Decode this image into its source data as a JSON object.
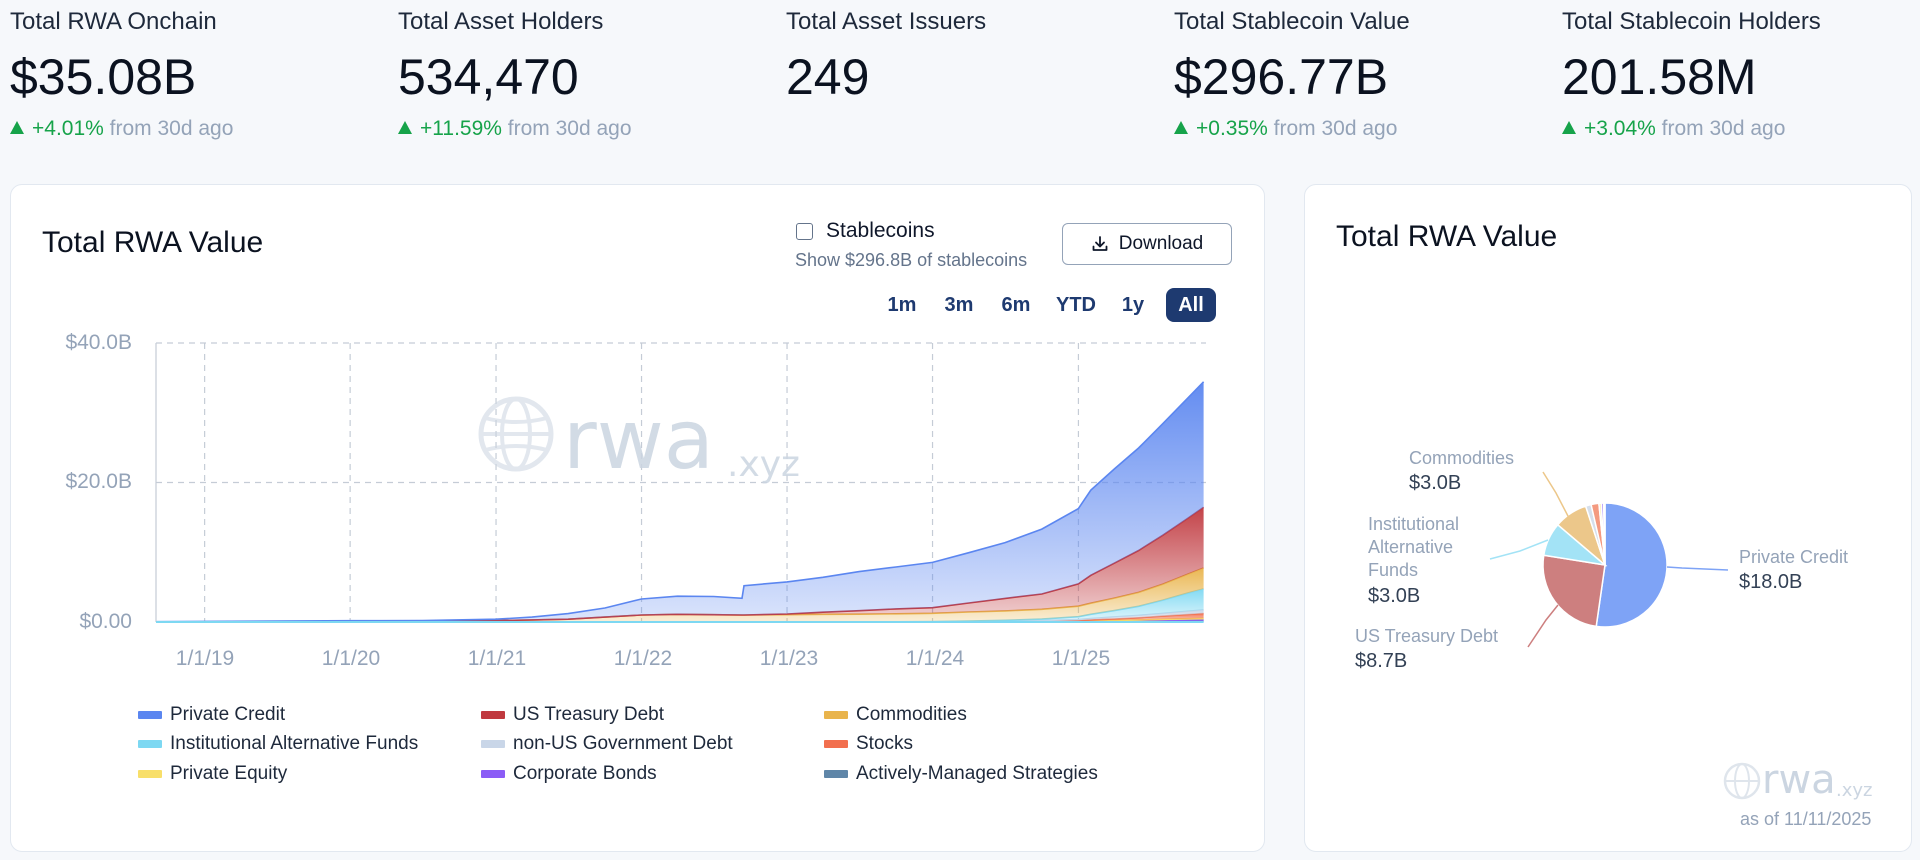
{
  "stats": [
    {
      "label": "Total RWA Onchain",
      "value": "$35.08B",
      "change": "+4.01%",
      "from": "from 30d ago"
    },
    {
      "label": "Total Asset Holders",
      "value": "534,470",
      "change": "+11.59%",
      "from": "from 30d ago"
    },
    {
      "label": "Total Asset Issuers",
      "value": "249",
      "change": "",
      "from": ""
    },
    {
      "label": "Total Stablecoin Value",
      "value": "$296.77B",
      "change": "+0.35%",
      "from": "from 30d ago"
    },
    {
      "label": "Total Stablecoin Holders",
      "value": "201.58M",
      "change": "+3.04%",
      "from": "from 30d ago"
    }
  ],
  "main": {
    "title": "Total RWA Value",
    "stablecoins_label": "Stablecoins",
    "stablecoins_sub": "Show $296.8B of stablecoins",
    "download_label": "Download",
    "ranges": [
      "1m",
      "3m",
      "6m",
      "YTD",
      "1y",
      "All"
    ],
    "active_range": "All"
  },
  "side": {
    "title": "Total RWA Value",
    "as_of": "as of 11/11/2025"
  },
  "watermark": {
    "main": "rwa",
    "suffix": ".xyz"
  },
  "colors": {
    "private_credit": "#5b86f0",
    "us_treasury": "#c0393f",
    "commodities": "#e9b44c",
    "inst_alt": "#7dd8f2",
    "non_us_gov": "#c9d6e8",
    "stocks": "#f26f4e",
    "private_equity": "#f8df6a",
    "corporate_bonds": "#8b5cf6",
    "actively_managed": "#5f86a8",
    "green": "#16a34a",
    "navy": "#1e3a70"
  },
  "chart_data": [
    {
      "type": "area",
      "title": "Total RWA Value",
      "stacked": true,
      "ylim": [
        0,
        40
      ],
      "y_unit": "B USD",
      "yticks": [
        "$0.00",
        "$20.0B",
        "$40.0B"
      ],
      "xticks": [
        "1/1/19",
        "1/1/20",
        "1/1/21",
        "1/1/22",
        "1/1/23",
        "1/1/24",
        "1/1/25"
      ],
      "x": [
        "2018-09-01",
        "2019-01-01",
        "2019-07-01",
        "2020-01-01",
        "2020-07-01",
        "2021-01-01",
        "2021-04-01",
        "2021-07-01",
        "2021-10-01",
        "2022-01-01",
        "2022-04-01",
        "2022-07-01",
        "2022-09-10",
        "2022-09-15",
        "2023-01-01",
        "2023-04-01",
        "2023-07-01",
        "2023-10-01",
        "2024-01-01",
        "2024-04-01",
        "2024-07-01",
        "2024-10-01",
        "2025-01-01",
        "2025-02-01",
        "2025-04-01",
        "2025-06-01",
        "2025-08-01",
        "2025-10-01",
        "2025-11-11"
      ],
      "legend_position": "bottom",
      "grid": true,
      "series": [
        {
          "name": "Actively-Managed Strategies",
          "color": "#5f86a8",
          "values": [
            0,
            0,
            0,
            0,
            0,
            0,
            0,
            0,
            0,
            0,
            0,
            0,
            0,
            0,
            0,
            0,
            0,
            0,
            0,
            0,
            0,
            0,
            0.01,
            0.02,
            0.03,
            0.05,
            0.07,
            0.1,
            0.12
          ]
        },
        {
          "name": "Corporate Bonds",
          "color": "#8b5cf6",
          "values": [
            0,
            0,
            0,
            0,
            0,
            0,
            0,
            0,
            0,
            0,
            0,
            0,
            0,
            0,
            0,
            0,
            0,
            0,
            0,
            0,
            0.01,
            0.02,
            0.04,
            0.06,
            0.1,
            0.13,
            0.17,
            0.2,
            0.22
          ]
        },
        {
          "name": "Private Equity",
          "color": "#f8df6a",
          "values": [
            0,
            0,
            0,
            0,
            0,
            0,
            0,
            0,
            0,
            0,
            0,
            0,
            0,
            0,
            0,
            0,
            0,
            0,
            0,
            0.01,
            0.02,
            0.04,
            0.06,
            0.08,
            0.1,
            0.12,
            0.15,
            0.18,
            0.2
          ]
        },
        {
          "name": "Stocks",
          "color": "#f26f4e",
          "values": [
            0,
            0,
            0,
            0,
            0,
            0,
            0,
            0,
            0,
            0,
            0,
            0,
            0,
            0,
            0,
            0,
            0,
            0,
            0.01,
            0.02,
            0.04,
            0.06,
            0.1,
            0.14,
            0.2,
            0.3,
            0.45,
            0.6,
            0.7
          ]
        },
        {
          "name": "non-US Government Debt",
          "color": "#c9d6e8",
          "values": [
            0,
            0,
            0,
            0,
            0,
            0,
            0,
            0,
            0,
            0,
            0,
            0,
            0,
            0,
            0,
            0.01,
            0.02,
            0.03,
            0.04,
            0.05,
            0.07,
            0.1,
            0.15,
            0.2,
            0.3,
            0.35,
            0.4,
            0.45,
            0.5
          ]
        },
        {
          "name": "Institutional Alternative Funds",
          "color": "#7dd8f2",
          "values": [
            0,
            0,
            0,
            0,
            0,
            0,
            0,
            0,
            0,
            0,
            0,
            0,
            0,
            0,
            0,
            0,
            0,
            0,
            0,
            0.05,
            0.1,
            0.2,
            0.4,
            0.6,
            0.9,
            1.3,
            1.9,
            2.6,
            3.0
          ]
        },
        {
          "name": "Commodities",
          "color": "#e9b44c",
          "values": [
            0.02,
            0.03,
            0.05,
            0.08,
            0.1,
            0.2,
            0.3,
            0.4,
            0.7,
            1.0,
            1.1,
            1.05,
            1.0,
            1.0,
            1.05,
            1.1,
            1.1,
            1.15,
            1.2,
            1.3,
            1.35,
            1.4,
            1.5,
            1.6,
            1.8,
            2.0,
            2.3,
            2.7,
            3.0
          ]
        },
        {
          "name": "US Treasury Debt",
          "color": "#c0393f",
          "values": [
            0,
            0,
            0,
            0,
            0,
            0,
            0,
            0,
            0,
            0,
            0,
            0,
            0,
            0,
            0.1,
            0.3,
            0.5,
            0.7,
            0.8,
            1.3,
            1.8,
            2.2,
            3.2,
            4.0,
            5.0,
            6.0,
            7.0,
            8.0,
            8.7
          ]
        },
        {
          "name": "Private Credit",
          "color": "#5b86f0",
          "values": [
            0.03,
            0.05,
            0.08,
            0.1,
            0.1,
            0.2,
            0.4,
            0.8,
            1.3,
            2.3,
            2.6,
            2.6,
            2.4,
            4.2,
            4.6,
            5.0,
            5.6,
            6.0,
            6.5,
            7.2,
            8.0,
            9.3,
            10.8,
            12.2,
            13.5,
            14.7,
            16.0,
            17.2,
            18.0
          ]
        }
      ],
      "legend": [
        "Private Credit",
        "US Treasury Debt",
        "Commodities",
        "Institutional Alternative Funds",
        "non-US Government Debt",
        "Stocks",
        "Private Equity",
        "Corporate Bonds",
        "Actively-Managed Strategies"
      ]
    },
    {
      "type": "pie",
      "title": "Total RWA Value",
      "slices": [
        {
          "name": "Private Credit",
          "value": 18.0,
          "label": "$18.0B",
          "color": "#7ea3f6"
        },
        {
          "name": "US Treasury Debt",
          "value": 8.7,
          "label": "$8.7B",
          "color": "#cd7f7f"
        },
        {
          "name": "Institutional Alternative Funds",
          "value": 3.0,
          "label": "$3.0B",
          "color": "#a3e3f6"
        },
        {
          "name": "Commodities",
          "value": 3.0,
          "label": "$3.0B",
          "color": "#ecc78a"
        },
        {
          "name": "non-US Government Debt",
          "value": 0.5,
          "label": "",
          "color": "#d5dfec"
        },
        {
          "name": "Stocks",
          "value": 0.7,
          "label": "",
          "color": "#f49a80"
        },
        {
          "name": "Private Equity",
          "value": 0.2,
          "label": "",
          "color": "#f9e595"
        },
        {
          "name": "Corporate Bonds",
          "value": 0.22,
          "label": "",
          "color": "#b59af8"
        },
        {
          "name": "Actively-Managed Strategies",
          "value": 0.12,
          "label": "",
          "color": "#8fa9c4"
        }
      ],
      "labeled": [
        {
          "name_lines": [
            "Private Credit"
          ],
          "value": "$18.0B"
        },
        {
          "name_lines": [
            "US Treasury Debt"
          ],
          "value": "$8.7B"
        },
        {
          "name_lines": [
            "Institutional",
            "Alternative",
            "Funds"
          ],
          "value": "$3.0B"
        },
        {
          "name_lines": [
            "Commodities"
          ],
          "value": "$3.0B"
        }
      ]
    }
  ]
}
